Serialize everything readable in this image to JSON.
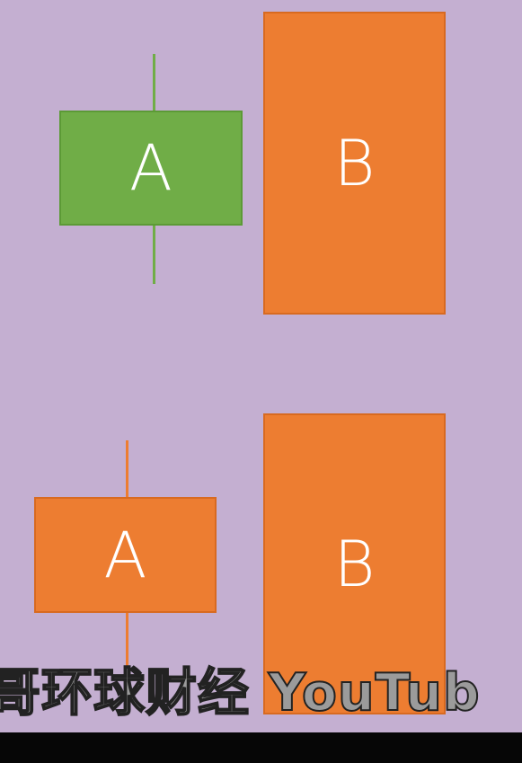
{
  "diagram": {
    "top_row": {
      "left_box_label": "A",
      "right_box_label": "B"
    },
    "bottom_row": {
      "left_box_label": "A",
      "right_box_label": "B"
    },
    "colors": {
      "background": "#c4afd1",
      "green": "#70ad47",
      "orange": "#ed7d31"
    }
  },
  "subtitle": {
    "text": "哥环球财经 YouTub"
  }
}
